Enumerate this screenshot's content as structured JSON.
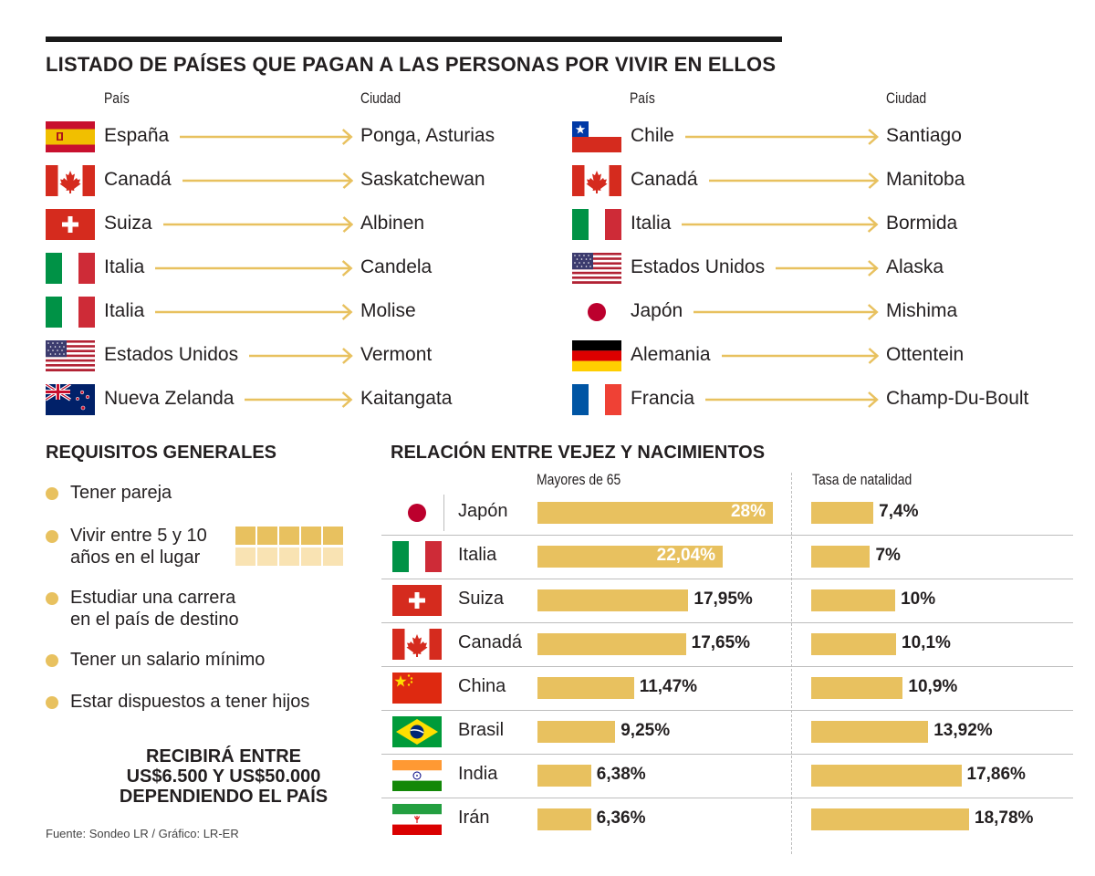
{
  "title": "LISTADO DE PAÍSES QUE PAGAN A LAS PERSONAS POR VIVIR EN ELLOS",
  "col_headers": {
    "pais": "País",
    "ciudad": "Ciudad"
  },
  "left_list": [
    {
      "flag": "spain-flag",
      "country": "España",
      "city": "Ponga, Asturias"
    },
    {
      "flag": "canada-flag",
      "country": "Canadá",
      "city": "Saskatchewan"
    },
    {
      "flag": "switzerland-flag",
      "country": "Suiza",
      "city": "Albinen"
    },
    {
      "flag": "italy-flag",
      "country": "Italia",
      "city": "Candela"
    },
    {
      "flag": "italy-flag",
      "country": "Italia",
      "city": "Molise"
    },
    {
      "flag": "usa-flag",
      "country": "Estados Unidos",
      "city": "Vermont"
    },
    {
      "flag": "new-zealand-flag",
      "country": "Nueva Zelanda",
      "city": "Kaitangata"
    }
  ],
  "right_list": [
    {
      "flag": "chile-flag",
      "country": "Chile",
      "city": "Santiago"
    },
    {
      "flag": "canada-flag",
      "country": "Canadá",
      "city": "Manitoba"
    },
    {
      "flag": "italy-flag",
      "country": "Italia",
      "city": "Bormida"
    },
    {
      "flag": "usa-flag",
      "country": "Estados Unidos",
      "city": "Alaska"
    },
    {
      "flag": "japan-flag",
      "country": "Japón",
      "city": "Mishima"
    },
    {
      "flag": "germany-flag",
      "country": "Alemania",
      "city": "Ottentein"
    },
    {
      "flag": "france-flag",
      "country": "Francia",
      "city": "Champ-Du-Boult"
    }
  ],
  "requirements": {
    "title": "REQUISITOS GENERALES",
    "items": [
      [
        "Tener pareja"
      ],
      [
        "Vivir entre 5 y 10",
        "años en el lugar"
      ],
      [
        "Estudiar una carrera",
        "en el país de destino"
      ],
      [
        "Tener un salario mínimo"
      ],
      [
        "Estar dispuestos a tener hijos"
      ]
    ]
  },
  "receive": [
    "RECIBIRÁ ENTRE",
    "US$6.500 Y US$50.000",
    "DEPENDIENDO EL PAÍS"
  ],
  "source": "Fuente: Sondeo LR / Gráfico: LR-ER",
  "colors": {
    "accent": "#e8c15f",
    "accent_light": "#f9e3b3",
    "text": "#231f20"
  },
  "chart_data": {
    "type": "bar",
    "title": "RELACIÓN ENTRE VEJEZ Y NACIMIENTOS",
    "categories": [
      "Japón",
      "Italia",
      "Suiza",
      "Canadá",
      "China",
      "Brasil",
      "India",
      "Irán"
    ],
    "flags": [
      "japan-flag",
      "italy-flag",
      "switzerland-flag",
      "canada-flag",
      "china-flag",
      "brazil-flag",
      "india-flag",
      "iran-flag"
    ],
    "series": [
      {
        "name": "Mayores de 65",
        "values": [
          28,
          22.04,
          17.95,
          17.65,
          11.47,
          9.25,
          6.38,
          6.36
        ],
        "labels": [
          "28%",
          "22,04%",
          "17,95%",
          "17,65%",
          "11,47%",
          "9,25%",
          "6,38%",
          "6,36%"
        ]
      },
      {
        "name": "Tasa de natalidad",
        "values": [
          7.4,
          7,
          10,
          10.1,
          10.9,
          13.92,
          17.86,
          18.78
        ],
        "labels": [
          "7,4%",
          "7%",
          "10%",
          "10,1%",
          "10,9%",
          "13,92%",
          "17,86%",
          "18,78%"
        ]
      }
    ],
    "unit": "%"
  }
}
